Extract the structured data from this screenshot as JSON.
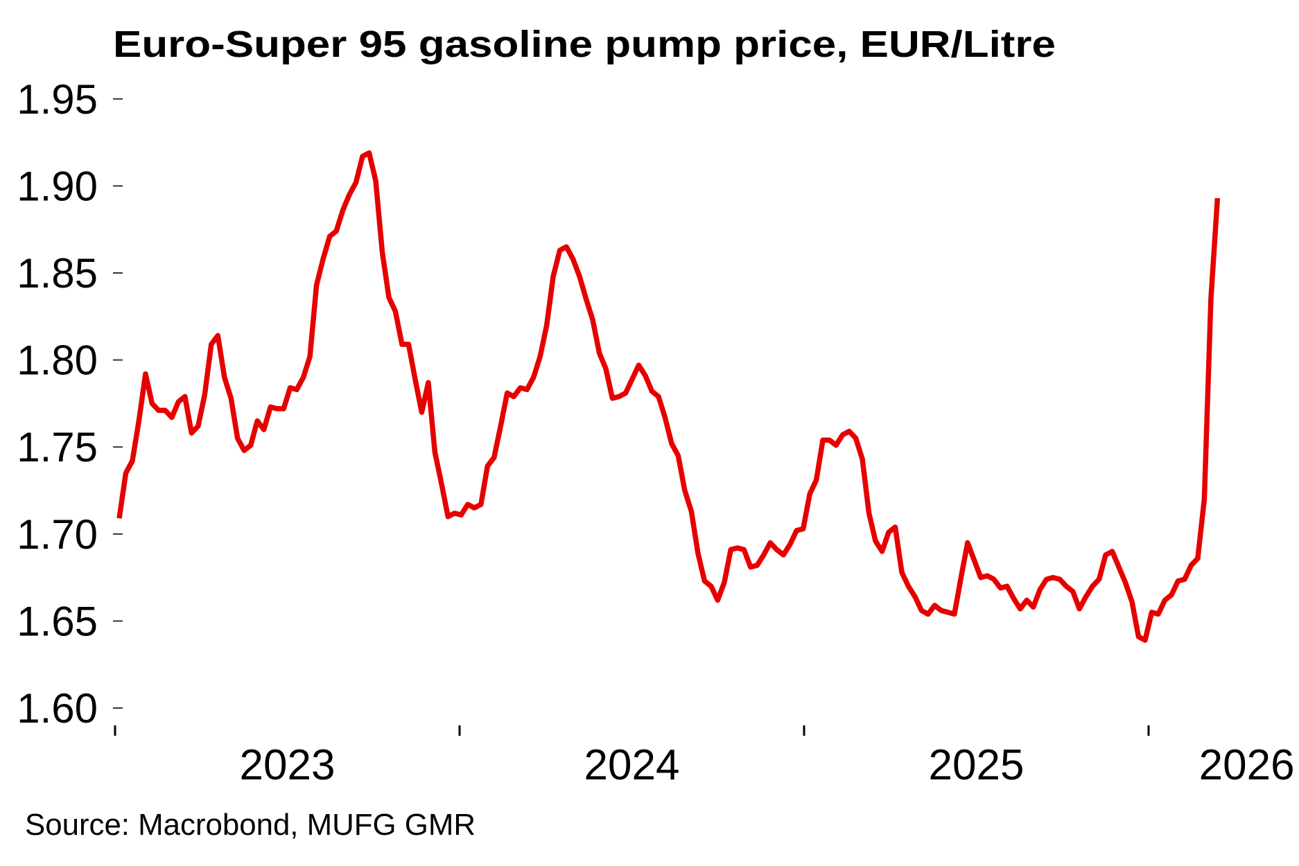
{
  "chart_data": {
    "type": "line",
    "title": "Euro-Super 95 gasoline pump price, EUR/Litre",
    "source": "Source: Macrobond, MUFG GMR",
    "xlabel": "",
    "ylabel": "",
    "frequency": "weekly",
    "x_range_years": [
      2023.012,
      2026.2
    ],
    "xlim": [
      2023.0,
      2026.24
    ],
    "ylim": [
      1.6,
      1.95
    ],
    "y_ticks": [
      1.6,
      1.65,
      1.7,
      1.75,
      1.8,
      1.85,
      1.9,
      1.95
    ],
    "y_tick_labels": [
      "1.60",
      "1.65",
      "1.70",
      "1.75",
      "1.80",
      "1.85",
      "1.90",
      "1.95"
    ],
    "x_tick_years": [
      2023,
      2024,
      2025,
      2026
    ],
    "x_labels": [
      {
        "label": "2023",
        "at": 2023.5
      },
      {
        "label": "2024",
        "at": 2024.5
      },
      {
        "label": "2025",
        "at": 2025.5
      },
      {
        "label": "2026",
        "at": 2026.285
      }
    ],
    "grid": false,
    "legend": "none",
    "series": [
      {
        "name": "Euro-Super 95 gasoline pump price",
        "color": "#E60000",
        "values": [
          1.709,
          1.735,
          1.742,
          1.765,
          1.792,
          1.775,
          1.771,
          1.771,
          1.767,
          1.776,
          1.779,
          1.758,
          1.762,
          1.78,
          1.809,
          1.814,
          1.79,
          1.778,
          1.755,
          1.748,
          1.751,
          1.765,
          1.76,
          1.773,
          1.772,
          1.772,
          1.784,
          1.783,
          1.79,
          1.802,
          1.843,
          1.858,
          1.871,
          1.874,
          1.886,
          1.895,
          1.902,
          1.917,
          1.919,
          1.903,
          1.862,
          1.836,
          1.828,
          1.809,
          1.809,
          1.789,
          1.77,
          1.787,
          1.747,
          1.729,
          1.71,
          1.712,
          1.711,
          1.717,
          1.715,
          1.717,
          1.739,
          1.744,
          1.762,
          1.781,
          1.779,
          1.784,
          1.783,
          1.79,
          1.802,
          1.82,
          1.848,
          1.863,
          1.865,
          1.858,
          1.848,
          1.835,
          1.823,
          1.804,
          1.795,
          1.778,
          1.779,
          1.781,
          1.789,
          1.797,
          1.791,
          1.782,
          1.779,
          1.767,
          1.752,
          1.745,
          1.725,
          1.713,
          1.689,
          1.673,
          1.67,
          1.662,
          1.672,
          1.691,
          1.692,
          1.691,
          1.681,
          1.682,
          1.688,
          1.695,
          1.691,
          1.688,
          1.694,
          1.702,
          1.703,
          1.723,
          1.731,
          1.754,
          1.754,
          1.751,
          1.757,
          1.759,
          1.755,
          1.743,
          1.712,
          1.696,
          1.69,
          1.701,
          1.704,
          1.678,
          1.67,
          1.664,
          1.656,
          1.654,
          1.659,
          1.656,
          1.655,
          1.654,
          1.675,
          1.695,
          1.685,
          1.675,
          1.676,
          1.674,
          1.669,
          1.67,
          1.663,
          1.657,
          1.662,
          1.658,
          1.668,
          1.674,
          1.675,
          1.674,
          1.67,
          1.667,
          1.657,
          1.664,
          1.67,
          1.674,
          1.688,
          1.69,
          1.681,
          1.672,
          1.661,
          1.641,
          1.639,
          1.655,
          1.654,
          1.662,
          1.665,
          1.673,
          1.674,
          1.682,
          1.686,
          1.72,
          1.835,
          1.893
        ]
      }
    ]
  }
}
